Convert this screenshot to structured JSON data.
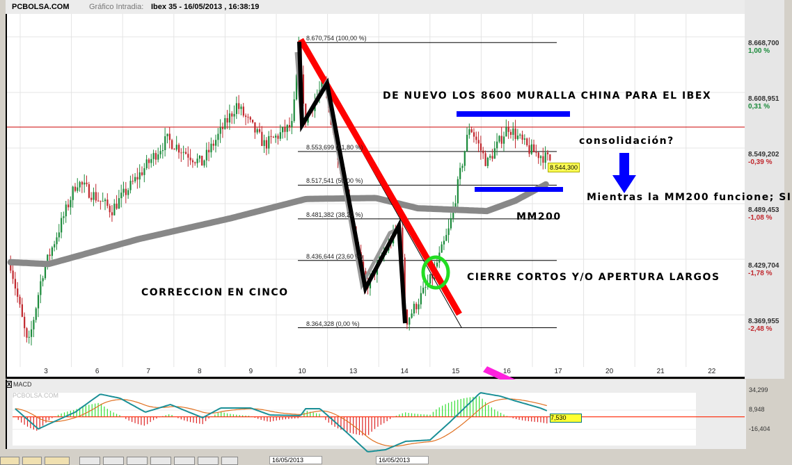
{
  "header": {
    "brand": "PCBOLSA.COM",
    "label": "Gráfico Intradia:",
    "title": "Ibex 35 - 16/05/2013 , 16:38:19"
  },
  "colors": {
    "up": "#1a8a3a",
    "down": "#c0262c",
    "mm200": "#888888",
    "trend": "#ff0000",
    "zigzag": "#000000",
    "support": "#0000ff",
    "circle": "#22dd22",
    "arrow_pink": "#ff22dd",
    "macd_line": "#1a8f96",
    "signal_line": "#e07020",
    "hist_pos": "#33dd33",
    "hist_neg": "#dd2222",
    "value_box": "#ffff33"
  },
  "chart_data": {
    "type": "candlestick",
    "instrument": "Ibex 35",
    "x_ticks": [
      "3",
      "6",
      "7",
      "8",
      "9",
      "10",
      "13",
      "14",
      "15",
      "16",
      "17",
      "20",
      "21",
      "22"
    ],
    "y_ticks": [
      {
        "value": "8.668,700",
        "pct": "1,00 %",
        "sign": "pos"
      },
      {
        "value": "8.608,951",
        "pct": "0,31 %",
        "sign": "pos"
      },
      {
        "value": "8.549,202",
        "pct": "-0,39 %",
        "sign": "neg"
      },
      {
        "value": "8.489,453",
        "pct": "-1,08 %",
        "sign": "neg"
      },
      {
        "value": "8.429,704",
        "pct": "-1,78 %",
        "sign": "neg"
      },
      {
        "value": "8.369,955",
        "pct": "-2,48 %",
        "sign": "neg"
      }
    ],
    "y_tick_values": [
      8668.7,
      8608.951,
      8549.202,
      8489.453,
      8429.704,
      8369.955
    ],
    "previous_close": 8582.9,
    "last_price": "8.544,300",
    "price_path": [
      [
        -0.69,
        8432
      ],
      [
        -0.35,
        8342
      ],
      [
        -0.08,
        8420
      ],
      [
        0.6,
        8521
      ],
      [
        1.28,
        8490
      ],
      [
        2.36,
        8566
      ],
      [
        3.04,
        8540
      ],
      [
        3.72,
        8603
      ],
      [
        4.27,
        8560
      ],
      [
        4.81,
        8581
      ],
      [
        4.95,
        8670
      ],
      [
        5.04,
        8585
      ],
      [
        5.42,
        8626
      ],
      [
        6.24,
        8406
      ],
      [
        6.92,
        8477
      ],
      [
        7.02,
        8369
      ],
      [
        7.53,
        8417
      ],
      [
        7.87,
        8469
      ],
      [
        8.27,
        8581
      ],
      [
        8.61,
        8540
      ],
      [
        9.02,
        8580
      ],
      [
        9.43,
        8555
      ],
      [
        9.84,
        8544
      ]
    ],
    "mm200": [
      [
        -0.69,
        8434
      ],
      [
        0.05,
        8432
      ],
      [
        1.82,
        8459
      ],
      [
        3.59,
        8481
      ],
      [
        5.08,
        8502
      ],
      [
        6.44,
        8503
      ],
      [
        7.26,
        8492
      ],
      [
        8.61,
        8489
      ],
      [
        9.16,
        8500
      ],
      [
        9.77,
        8518
      ]
    ],
    "fibonacci": [
      {
        "price": 8670.754,
        "label": "8.670,754 (100,00  %)"
      },
      {
        "price": 8553.699,
        "label": "8.553,699 (61,80  %)"
      },
      {
        "price": 8517.541,
        "label": "8.517,541 (50,00  %)"
      },
      {
        "price": 8481.382,
        "label": "8.481,382 (38,20  %)"
      },
      {
        "price": 8436.644,
        "label": "8.436,644 (23,60  %)"
      },
      {
        "price": 8364.328,
        "label": "8.364,328 (0,00  %)"
      }
    ]
  },
  "annotations": {
    "muralla": "DE NUEVO LOS 8600 MURALLA CHINA PARA EL IBEX",
    "consolidacion": "consolidación?",
    "mientras": "Mientras la MM200 funcione; SI",
    "mm200": "MM200",
    "cierre": "CIERRE CORTOS Y/O APERTURA LARGOS",
    "correccion": "CORRECCION EN CINCO"
  },
  "macd": {
    "title": "MACD",
    "watermark": "PCBOLSA.COM",
    "close_label": "X",
    "y_ticks": [
      "34,299",
      "8,948",
      "-16,404"
    ],
    "y_tick_values": [
      34.299,
      8.948,
      -16.404
    ],
    "last_value": "7,530",
    "macd_path": [
      [
        -0.6,
        10.8
      ],
      [
        -0.15,
        -16
      ],
      [
        0.57,
        6.2
      ],
      [
        1.06,
        30.1
      ],
      [
        1.45,
        24.6
      ],
      [
        1.94,
        6.2
      ],
      [
        2.43,
        16.3
      ],
      [
        3.06,
        -1.2
      ],
      [
        3.41,
        11.7
      ],
      [
        4.0,
        11.7
      ],
      [
        4.37,
        2.5
      ],
      [
        4.97,
        1.6
      ],
      [
        5.07,
        10.8
      ],
      [
        5.35,
        10.8
      ],
      [
        5.84,
        -18.7
      ],
      [
        6.28,
        -46.4
      ],
      [
        6.63,
        -43.6
      ],
      [
        7.02,
        -32.5
      ],
      [
        7.5,
        -30.7
      ],
      [
        7.89,
        -6.7
      ],
      [
        8.48,
        32
      ],
      [
        8.87,
        27.4
      ],
      [
        9.17,
        21
      ],
      [
        9.65,
        11.7
      ],
      [
        9.8,
        7.53
      ]
    ]
  },
  "toolbar": {
    "from_date": "16/05/2013",
    "to_date": "16/05/2013"
  }
}
